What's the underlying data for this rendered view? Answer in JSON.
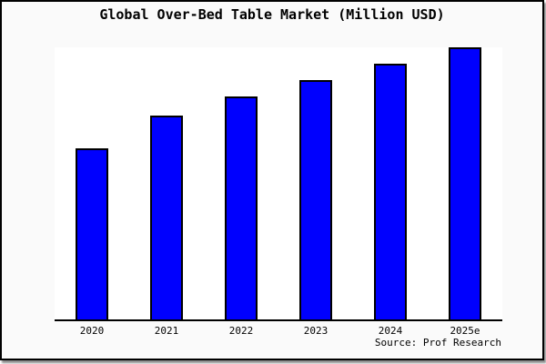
{
  "window": {
    "background_color": "#fafafa",
    "plot_background_color": "#ffffff",
    "border_color": "#000000"
  },
  "chart_data": {
    "type": "bar",
    "title": "Global Over-Bed Table Market (Million USD)",
    "categories": [
      "2020",
      "2021",
      "2022",
      "2023",
      "2024",
      "2025e"
    ],
    "values": [
      63,
      75,
      82,
      88,
      94,
      100
    ],
    "unit": "Million USD",
    "xlabel": "",
    "ylabel": "",
    "ylim": [
      0,
      100
    ],
    "y_axis_ticks_visible": false,
    "grid": false,
    "legend": "none",
    "bar_color": "#0000fe",
    "bar_border_color": "#000000",
    "source": "Source: Prof Research"
  }
}
